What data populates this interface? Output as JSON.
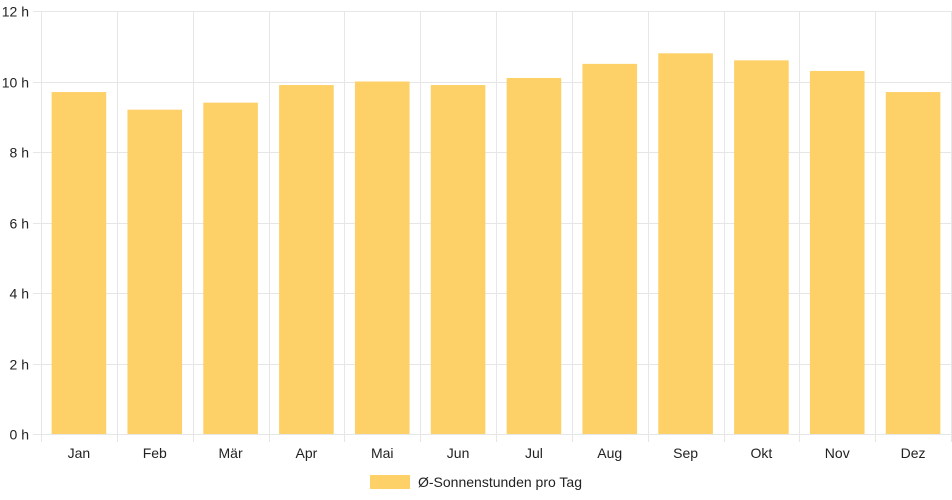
{
  "chart_data": {
    "type": "bar",
    "categories": [
      "Jan",
      "Feb",
      "Mär",
      "Apr",
      "Mai",
      "Jun",
      "Jul",
      "Aug",
      "Sep",
      "Okt",
      "Nov",
      "Dez"
    ],
    "series": [
      {
        "name": "Ø-Sonnenstunden pro Tag",
        "values": [
          9.7,
          9.2,
          9.4,
          9.9,
          10.0,
          9.9,
          10.1,
          10.5,
          10.8,
          10.6,
          10.3,
          9.7
        ]
      }
    ],
    "ylim": [
      0,
      12
    ],
    "yticks": [
      "0 h",
      "2 h",
      "4 h",
      "6 h",
      "8 h",
      "10 h",
      "12 h"
    ],
    "ytick_values": [
      0,
      2,
      4,
      6,
      8,
      10,
      12
    ],
    "grid": true,
    "legend_position": "bottom-center",
    "bar_color": "#fdd068",
    "grid_color": "#e6e6e6"
  }
}
